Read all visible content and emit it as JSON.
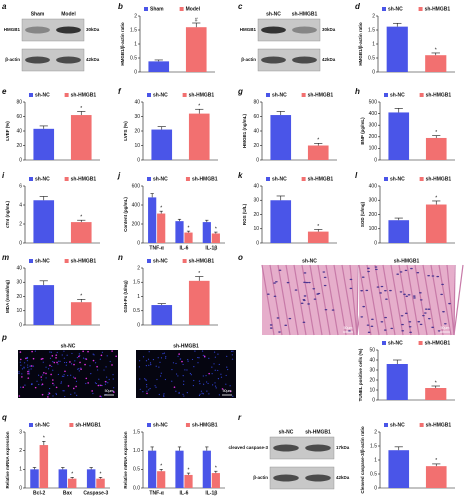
{
  "chart_data": [
    {
      "type": "bar",
      "ylabel": "HMGB1/β-actin ratio",
      "ylim": [
        0,
        2
      ],
      "yticks": [
        0,
        0.5,
        1,
        1.5,
        2
      ],
      "sig_label": "#",
      "series": [
        {
          "name": "Sham",
          "color": "#4a55e8",
          "values": [
            0.38
          ],
          "errors": [
            0.05
          ]
        },
        {
          "name": "Model",
          "color": "#f27070",
          "values": [
            1.6
          ],
          "errors": [
            0.15
          ]
        }
      ]
    },
    {
      "type": "bar",
      "ylabel": "HMGB1/β-actin ratio",
      "ylim": [
        0,
        2
      ],
      "yticks": [
        0,
        0.5,
        1,
        1.5,
        2
      ],
      "sig_label": "*",
      "series": [
        {
          "name": "sh-NC",
          "color": "#4a55e8",
          "values": [
            1.62
          ],
          "errors": [
            0.12
          ]
        },
        {
          "name": "sh-HMGB1",
          "color": "#f27070",
          "values": [
            0.6
          ],
          "errors": [
            0.08
          ]
        }
      ]
    },
    {
      "type": "bar",
      "ylabel": "LVEF (%)",
      "ylim": [
        0,
        80
      ],
      "yticks": [
        0,
        20,
        40,
        60,
        80
      ],
      "sig_label": "*",
      "series": [
        {
          "name": "sh-NC",
          "color": "#4a55e8",
          "values": [
            43
          ],
          "errors": [
            4
          ]
        },
        {
          "name": "sh-HMGB1",
          "color": "#f27070",
          "values": [
            62
          ],
          "errors": [
            5
          ]
        }
      ]
    },
    {
      "type": "bar",
      "ylabel": "LVFS (%)",
      "ylim": [
        0,
        40
      ],
      "yticks": [
        0,
        10,
        20,
        30,
        40
      ],
      "sig_label": "*",
      "series": [
        {
          "name": "sh-NC",
          "color": "#4a55e8",
          "values": [
            21
          ],
          "errors": [
            2
          ]
        },
        {
          "name": "sh-HMGB1",
          "color": "#f27070",
          "values": [
            32
          ],
          "errors": [
            3
          ]
        }
      ]
    },
    {
      "type": "bar",
      "ylabel": "HMGB1 (ng/mL)",
      "ylim": [
        0,
        80
      ],
      "yticks": [
        0,
        20,
        40,
        60,
        80
      ],
      "sig_label": "*",
      "series": [
        {
          "name": "sh-NC",
          "color": "#4a55e8",
          "values": [
            62
          ],
          "errors": [
            5
          ]
        },
        {
          "name": "sh-HMGB1",
          "color": "#f27070",
          "values": [
            20
          ],
          "errors": [
            3
          ]
        }
      ]
    },
    {
      "type": "bar",
      "ylabel": "BNP (pg/mL)",
      "ylim": [
        0,
        500
      ],
      "yticks": [
        0,
        100,
        200,
        300,
        400,
        500
      ],
      "sig_label": "*",
      "series": [
        {
          "name": "sh-NC",
          "color": "#4a55e8",
          "values": [
            410
          ],
          "errors": [
            35
          ]
        },
        {
          "name": "sh-HMGB1",
          "color": "#f27070",
          "values": [
            190
          ],
          "errors": [
            20
          ]
        }
      ]
    },
    {
      "type": "bar",
      "ylabel": "cTnI (ng/mL)",
      "ylim": [
        0,
        6
      ],
      "yticks": [
        0,
        2,
        4,
        6
      ],
      "sig_label": "*",
      "series": [
        {
          "name": "sh-NC",
          "color": "#4a55e8",
          "values": [
            4.5
          ],
          "errors": [
            0.4
          ]
        },
        {
          "name": "sh-HMGB1",
          "color": "#f27070",
          "values": [
            2.2
          ],
          "errors": [
            0.2
          ]
        }
      ]
    },
    {
      "type": "bar",
      "ylabel": "Content (pg/mL)",
      "ylim": [
        0,
        600
      ],
      "yticks": [
        0,
        200,
        400,
        600
      ],
      "sig_label": "*",
      "categories": [
        "TNF-α",
        "IL-6",
        "IL-1β"
      ],
      "series": [
        {
          "name": "sh-NC",
          "color": "#4a55e8",
          "values": [
            480,
            230,
            220
          ],
          "errors": [
            40,
            20,
            20
          ]
        },
        {
          "name": "sh-HMGB1",
          "color": "#f27070",
          "values": [
            310,
            110,
            100
          ],
          "errors": [
            25,
            15,
            15
          ]
        }
      ]
    },
    {
      "type": "bar",
      "ylabel": "ROS (U/L)",
      "ylim": [
        0,
        40
      ],
      "yticks": [
        0,
        10,
        20,
        30,
        40
      ],
      "sig_label": "*",
      "series": [
        {
          "name": "sh-NC",
          "color": "#4a55e8",
          "values": [
            30
          ],
          "errors": [
            3
          ]
        },
        {
          "name": "sh-HMGB1",
          "color": "#f27070",
          "values": [
            8
          ],
          "errors": [
            1.5
          ]
        }
      ]
    },
    {
      "type": "bar",
      "ylabel": "SOD (U/mg)",
      "ylim": [
        0,
        400
      ],
      "yticks": [
        0,
        100,
        200,
        300,
        400
      ],
      "sig_label": "*",
      "series": [
        {
          "name": "sh-NC",
          "color": "#4a55e8",
          "values": [
            160
          ],
          "errors": [
            15
          ]
        },
        {
          "name": "sh-HMGB1",
          "color": "#f27070",
          "values": [
            270
          ],
          "errors": [
            25
          ]
        }
      ]
    },
    {
      "type": "bar",
      "ylabel": "MDA (nmol/mg)",
      "ylim": [
        0,
        40
      ],
      "yticks": [
        0,
        10,
        20,
        30,
        40
      ],
      "sig_label": "*",
      "series": [
        {
          "name": "sh-NC",
          "color": "#4a55e8",
          "values": [
            28
          ],
          "errors": [
            3
          ]
        },
        {
          "name": "sh-HMGB1",
          "color": "#f27070",
          "values": [
            16
          ],
          "errors": [
            2
          ]
        }
      ]
    },
    {
      "type": "bar",
      "ylabel": "GSH-Px (U/mg)",
      "ylim": [
        0,
        2
      ],
      "yticks": [
        0,
        0.5,
        1,
        1.5,
        2
      ],
      "sig_label": "*",
      "series": [
        {
          "name": "sh-NC",
          "color": "#4a55e8",
          "values": [
            0.7
          ],
          "errors": [
            0.05
          ]
        },
        {
          "name": "sh-HMGB1",
          "color": "#f27070",
          "values": [
            1.55
          ],
          "errors": [
            0.15
          ]
        }
      ]
    },
    {
      "type": "bar",
      "ylabel": "TUNEL positive cells (%)",
      "ylim": [
        0,
        50
      ],
      "yticks": [
        0,
        10,
        20,
        30,
        40,
        50
      ],
      "sig_label": "*",
      "series": [
        {
          "name": "sh-NC",
          "color": "#4a55e8",
          "values": [
            36
          ],
          "errors": [
            4
          ]
        },
        {
          "name": "sh-HMGB1",
          "color": "#f27070",
          "values": [
            12
          ],
          "errors": [
            2
          ]
        }
      ]
    },
    {
      "type": "bar",
      "ylabel": "Relative mRNA expression",
      "ylim": [
        0,
        3
      ],
      "yticks": [
        0,
        1,
        2,
        3
      ],
      "sig_label": "*",
      "categories": [
        "Bcl-2",
        "Bax",
        "Caspase-3"
      ],
      "series": [
        {
          "name": "sh-NC",
          "color": "#4a55e8",
          "values": [
            1.0,
            1.0,
            1.0
          ],
          "errors": [
            0.1,
            0.1,
            0.1
          ]
        },
        {
          "name": "sh-HMGB1",
          "color": "#f27070",
          "values": [
            2.3,
            0.5,
            0.5
          ],
          "errors": [
            0.2,
            0.07,
            0.07
          ]
        }
      ]
    },
    {
      "type": "bar",
      "ylabel": "Relative mRNA expression",
      "ylim": [
        0,
        1.5
      ],
      "yticks": [
        {
          "value": 0,
          "label": "0.0"
        },
        {
          "value": 0.5,
          "label": "0.5"
        },
        {
          "value": 1,
          "label": "1.0"
        },
        {
          "value": 1.5,
          "label": "1.5"
        }
      ],
      "sig_label": "*",
      "categories": [
        "TNF-α",
        "IL-6",
        "IL-1β"
      ],
      "series": [
        {
          "name": "sh-NC",
          "color": "#4a55e8",
          "values": [
            1.0,
            1.0,
            1.0
          ],
          "errors": [
            0.1,
            0.1,
            0.1
          ]
        },
        {
          "name": "sh-HMGB1",
          "color": "#f27070",
          "values": [
            0.45,
            0.35,
            0.4
          ],
          "errors": [
            0.05,
            0.05,
            0.05
          ]
        }
      ]
    },
    {
      "type": "bar",
      "ylabel": "Cleaved caspase-3/β-actin ratio",
      "ylim": [
        0,
        2
      ],
      "yticks": [
        0,
        0.5,
        1,
        1.5,
        2
      ],
      "sig_label": "*",
      "series": [
        {
          "name": "sh-NC",
          "color": "#4a55e8",
          "values": [
            1.35
          ],
          "errors": [
            0.12
          ]
        },
        {
          "name": "sh-HMGB1",
          "color": "#f27070",
          "values": [
            0.78
          ],
          "errors": [
            0.08
          ]
        }
      ]
    }
  ],
  "figure": {
    "letters": [
      "a",
      "b",
      "c",
      "d",
      "e",
      "f",
      "g",
      "h",
      "i",
      "j",
      "k",
      "l",
      "m",
      "n",
      "o",
      "p",
      "q",
      "r"
    ],
    "blots": [
      {
        "lanes": [
          "Sham",
          "Model"
        ],
        "rows": [
          {
            "name": "HMGB1",
            "size": "30kDa"
          },
          {
            "name": "β-actin",
            "size": "42kDa"
          }
        ]
      },
      {
        "lanes": [
          "sh-NC",
          "sh-HMGB1"
        ],
        "rows": [
          {
            "name": "HMGB1",
            "size": "30kDa"
          },
          {
            "name": "β-actin",
            "size": "42kDa"
          }
        ]
      },
      {
        "lanes": [
          "sh-NC",
          "sh-HMGB1"
        ],
        "rows": [
          {
            "name": "cleaved caspase-3",
            "size": "17kDa"
          },
          {
            "name": "β-actin",
            "size": "42kDa"
          }
        ]
      }
    ],
    "images": [
      {
        "labels": [
          "sh-NC",
          "sh-HMGB1"
        ],
        "scale": "50μm"
      },
      {
        "labels": [
          "sh-NC",
          "sh-HMGB1"
        ],
        "scale": "50μm"
      }
    ]
  }
}
